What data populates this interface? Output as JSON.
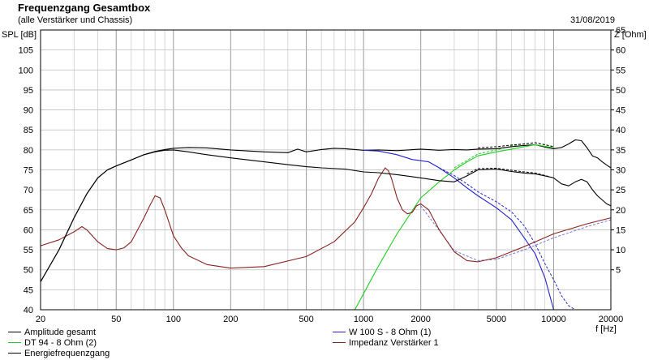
{
  "chart_data": {
    "type": "line",
    "title": "Frequenzgang Gesamtbox",
    "subtitle": "(alle Verstärker und Chassis)",
    "date": "31/08/2019",
    "ylabel": "SPL [dB]",
    "ylabel_right": "Z [Ohm]",
    "xlabel": "f [Hz]",
    "x_scale": "log",
    "xlim": [
      20,
      20000
    ],
    "ylim": [
      40,
      110
    ],
    "ylim_right": [
      -5,
      65
    ],
    "grid": true,
    "x_ticks": [
      20,
      50,
      100,
      200,
      500,
      1000,
      2000,
      5000,
      10000,
      20000
    ],
    "x_tick_labels": [
      "20",
      "50",
      "100",
      "200",
      "500",
      "1000",
      "2000",
      "5000",
      "10000",
      "20000"
    ],
    "y_ticks": [
      40,
      45,
      50,
      55,
      60,
      65,
      70,
      75,
      80,
      85,
      90,
      95,
      100,
      105
    ],
    "y_tick_labels": [
      "40",
      "45",
      "50",
      "55",
      "60",
      "65",
      "70",
      "75",
      "80",
      "85",
      "90",
      "95",
      "100",
      "105"
    ],
    "y_right_ticks": [
      5,
      10,
      15,
      20,
      25,
      30,
      35,
      40,
      45,
      50,
      55,
      60,
      65
    ],
    "y_right_tick_labels": [
      "5",
      "10",
      "15",
      "20",
      "25",
      "30",
      "35",
      "40",
      "45",
      "50",
      "55",
      "60",
      "65"
    ],
    "series": [
      {
        "name": "Amplitude gesamt",
        "color": "#000000",
        "axis": "left",
        "x": [
          20,
          25,
          30,
          35,
          40,
          45,
          50,
          60,
          70,
          80,
          90,
          100,
          120,
          150,
          200,
          300,
          400,
          450,
          500,
          600,
          700,
          800,
          1000,
          1200,
          1500,
          2000,
          2500,
          3000,
          3500,
          4000,
          5000,
          6000,
          7000,
          8000,
          9000,
          10000,
          11000,
          12000,
          13000,
          14000,
          15000,
          16000,
          17000,
          18000,
          19000,
          20000
        ],
        "y": [
          47,
          55,
          63,
          69,
          73,
          75,
          76,
          77.5,
          78.8,
          79.6,
          80.1,
          80.4,
          80.6,
          80.5,
          80.0,
          79.5,
          79.3,
          80.2,
          79.5,
          80.1,
          80.4,
          80.3,
          79.9,
          80.0,
          79.8,
          80.2,
          79.9,
          80.1,
          80.0,
          80.2,
          80.3,
          80.8,
          81.1,
          81.3,
          80.7,
          80.3,
          80.6,
          81.5,
          82.5,
          82.3,
          80.5,
          78.5,
          78.0,
          77.0,
          76.2,
          75.5
        ]
      },
      {
        "name": "W 100 S - 8 Ohm (1)",
        "color": "#2222cc",
        "axis": "left",
        "x": [
          1000,
          1200,
          1500,
          1800,
          2000,
          2200,
          2500,
          3000,
          3500,
          4000,
          5000,
          6000,
          7000,
          8000,
          9000,
          10000
        ],
        "y": [
          79.9,
          79.7,
          78.8,
          77.6,
          77.3,
          77.0,
          75.5,
          73.0,
          70.5,
          68.5,
          65.5,
          62.5,
          58.0,
          54.0,
          48.0,
          40.0
        ]
      },
      {
        "name": "DT 94 - 8 Ohm (2)",
        "color": "#22cc22",
        "axis": "left",
        "x": [
          900,
          1000,
          1200,
          1500,
          2000,
          2500,
          3000,
          3500,
          4000,
          5000,
          6000,
          7000,
          8000,
          9000,
          10000
        ],
        "y": [
          40,
          44,
          51,
          59,
          68,
          72,
          75,
          77,
          78.5,
          79.5,
          80.2,
          80.8,
          81.3,
          80.9,
          80.5
        ]
      },
      {
        "name": "Impedanz Verstärker 1",
        "color": "#882222",
        "axis": "right",
        "x": [
          20,
          25,
          30,
          33,
          35,
          40,
          45,
          50,
          55,
          60,
          70,
          75,
          80,
          85,
          90,
          100,
          110,
          120,
          150,
          200,
          300,
          500,
          700,
          900,
          1000,
          1100,
          1200,
          1300,
          1350,
          1400,
          1500,
          1600,
          1700,
          1800,
          1900,
          2000,
          2200,
          2500,
          3000,
          3500,
          4000,
          5000,
          7000,
          10000,
          15000,
          20000
        ],
        "y": [
          11,
          12.5,
          14.5,
          15.8,
          15,
          12,
          10.3,
          10,
          10.5,
          12,
          18,
          21,
          23.5,
          23,
          20,
          13.5,
          10.5,
          8.5,
          6.3,
          5.4,
          5.8,
          8.3,
          12,
          17,
          20.5,
          24,
          28,
          30.5,
          29.8,
          28,
          23,
          20,
          19,
          19.3,
          21,
          21.5,
          20,
          15,
          9.5,
          7.3,
          7,
          8,
          10.8,
          14,
          16.5,
          18
        ]
      },
      {
        "name": "Energiefrequenzgang",
        "color": "#000000",
        "axis": "left",
        "x": [
          20,
          25,
          30,
          35,
          40,
          45,
          50,
          60,
          70,
          80,
          90,
          100,
          120,
          150,
          200,
          300,
          400,
          500,
          600,
          800,
          1000,
          1200,
          1500,
          2000,
          2500,
          3000,
          3500,
          4000,
          5000,
          6000,
          7000,
          8000,
          9000,
          10000,
          11000,
          12000,
          13000,
          14000,
          15000,
          16000,
          17000,
          18000,
          19000,
          20000
        ],
        "y": [
          47,
          55,
          63,
          69,
          73,
          75,
          76,
          77.5,
          78.8,
          79.5,
          79.9,
          80.0,
          79.5,
          78.8,
          78.0,
          77.0,
          76.3,
          75.8,
          75.5,
          75.2,
          74.5,
          74.3,
          73.8,
          73.0,
          72.3,
          72.0,
          73.5,
          75.0,
          75.2,
          74.6,
          74.2,
          74.0,
          73.5,
          73.0,
          71.5,
          71.0,
          72.0,
          72.6,
          72.0,
          70.0,
          68.5,
          67.5,
          66.5,
          66.0
        ]
      }
    ],
    "dashed_series": [
      {
        "color": "#2222cc",
        "axis": "left",
        "x": [
          2500,
          3000,
          3500,
          4000,
          5000,
          6000,
          7000,
          8000,
          9000,
          10000,
          11000,
          12000,
          13000
        ],
        "y": [
          75.5,
          73.6,
          71.5,
          69.5,
          67.0,
          64.5,
          61.0,
          56.5,
          51.5,
          47.5,
          43.5,
          41.0,
          40.0
        ]
      },
      {
        "color": "#22cc22",
        "axis": "left",
        "x": [
          3000,
          4000,
          5000,
          6000,
          7000,
          8000,
          9000,
          10000
        ],
        "y": [
          75.5,
          79.0,
          80.0,
          81.0,
          81.5,
          81.8,
          81.3,
          80.8
        ]
      },
      {
        "color": "#000000",
        "axis": "left",
        "x": [
          4000,
          5000,
          6000,
          7000,
          8000,
          9000,
          10000
        ],
        "y": [
          80.5,
          80.8,
          81.2,
          81.5,
          81.8,
          81.3,
          80.8
        ]
      },
      {
        "color": "#000000",
        "axis": "left",
        "x": [
          3500,
          4000,
          5000,
          6000,
          7000,
          8000,
          9000,
          10000
        ],
        "y": [
          74.0,
          75.3,
          75.4,
          74.9,
          74.5,
          74.2,
          73.6,
          73.0
        ]
      },
      {
        "color": "#7777dd",
        "axis": "right",
        "x": [
          2000,
          3000,
          4000,
          5000,
          7000,
          10000,
          15000,
          20000
        ],
        "y": [
          21,
          9.8,
          7.3,
          7.6,
          10,
          13,
          15.8,
          17.5
        ]
      }
    ]
  }
}
